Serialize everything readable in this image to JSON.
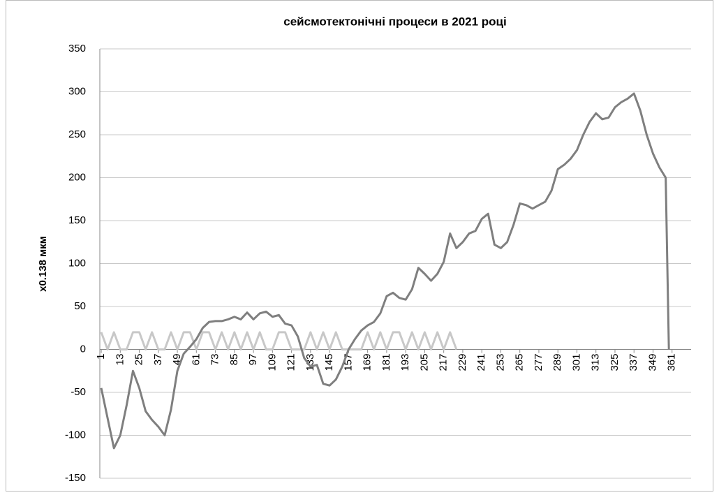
{
  "chart_data": {
    "type": "line",
    "title": "сейсмотектонічні процеси в 2021 році",
    "ylabel": "x0.138 мкм",
    "x": [
      1,
      5,
      9,
      13,
      17,
      21,
      25,
      29,
      33,
      37,
      41,
      45,
      49,
      53,
      57,
      61,
      65,
      69,
      73,
      77,
      81,
      85,
      89,
      93,
      97,
      101,
      105,
      109,
      113,
      117,
      121,
      125,
      129,
      133,
      137,
      141,
      145,
      149,
      153,
      157,
      161,
      165,
      169,
      173,
      177,
      181,
      185,
      189,
      193,
      197,
      201,
      205,
      209,
      213,
      217,
      221,
      225,
      229,
      233,
      237,
      241,
      245,
      249,
      253,
      257,
      261,
      265,
      269,
      273,
      277,
      281,
      285,
      289,
      293,
      297,
      301,
      305,
      309,
      313,
      317,
      321,
      325,
      329,
      333,
      337,
      341,
      345,
      349,
      353,
      357,
      359
    ],
    "series": [
      {
        "color": "#7f7f7f",
        "values": [
          -45,
          -80,
          -115,
          -100,
          -65,
          -25,
          -45,
          -72,
          -82,
          -90,
          -100,
          -70,
          -25,
          -5,
          3,
          12,
          25,
          32,
          33,
          33,
          35,
          38,
          35,
          43,
          35,
          42,
          44,
          38,
          40,
          30,
          28,
          15,
          -10,
          -20,
          -18,
          -40,
          -42,
          -35,
          -20,
          0,
          12,
          22,
          28,
          32,
          42,
          62,
          66,
          60,
          58,
          70,
          95,
          88,
          80,
          88,
          102,
          135,
          118,
          125,
          135,
          138,
          152,
          158,
          122,
          118,
          125,
          145,
          170,
          168,
          164,
          168,
          172,
          185,
          210,
          215,
          222,
          232,
          250,
          265,
          275,
          268,
          270,
          282,
          288,
          292,
          298,
          278,
          250,
          228,
          212,
          200,
          0
        ]
      },
      {
        "color": "#c8c8c8",
        "values": [
          20,
          0,
          20,
          0,
          0,
          20,
          20,
          0,
          20,
          0,
          0,
          20,
          0,
          20,
          20,
          0,
          20,
          20,
          0,
          20,
          0,
          20,
          0,
          20,
          0,
          20,
          0,
          0,
          20,
          20,
          0,
          0,
          0,
          20,
          0,
          20,
          0,
          20,
          0,
          0,
          0,
          0,
          20,
          0,
          20,
          0,
          20,
          20,
          0,
          20,
          0,
          20,
          0,
          20,
          0,
          20,
          0,
          null,
          null,
          null,
          null,
          null,
          null,
          null,
          null,
          null,
          null,
          null,
          null,
          null,
          null,
          null,
          null,
          null,
          null,
          null,
          null,
          null,
          null,
          null,
          null,
          null,
          null,
          null,
          null,
          null,
          null,
          null,
          null,
          null,
          null
        ]
      }
    ],
    "xlim": [
      0.1,
      373
    ],
    "xticks": [
      1,
      13,
      25,
      37,
      49,
      61,
      73,
      85,
      97,
      109,
      121,
      133,
      145,
      157,
      169,
      181,
      193,
      205,
      217,
      229,
      241,
      253,
      265,
      277,
      289,
      301,
      313,
      325,
      337,
      349,
      361
    ],
    "ylim": [
      -150,
      350
    ],
    "yticks": [
      -150,
      -100,
      -50,
      0,
      50,
      100,
      150,
      200,
      250,
      300,
      350
    ],
    "grid": true
  }
}
